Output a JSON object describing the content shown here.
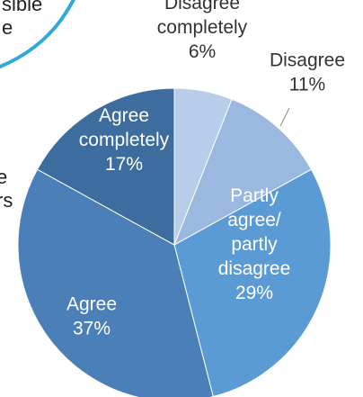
{
  "fragments": {
    "top_left_line1": "sible",
    "top_left_line2": "e",
    "mid_left_line1": "e",
    "mid_left_line2": "rs"
  },
  "chart_data": {
    "type": "pie",
    "title": "",
    "slices": [
      {
        "label_lines": [
          "Disagree",
          "completely",
          "6%"
        ],
        "value": 6,
        "color": "#b7cde9",
        "label_color": "#333333"
      },
      {
        "label_lines": [
          "Disagree",
          "11%"
        ],
        "value": 11,
        "color": "#9ab8e0",
        "label_color": "#333333"
      },
      {
        "label_lines": [
          "Partly",
          "agree/",
          "partly",
          "disagree",
          "29%"
        ],
        "value": 29,
        "color": "#5b9bd5",
        "label_color": "#ffffff"
      },
      {
        "label_lines": [
          "Agree",
          "37%"
        ],
        "value": 37,
        "color": "#4b7fb8",
        "label_color": "#ffffff"
      },
      {
        "label_lines": [
          "Agree",
          "completely",
          "17%"
        ],
        "value": 17,
        "color": "#3d6d9e",
        "label_color": "#ffffff"
      }
    ],
    "colors": {
      "callout_circle": "#2fa8dc",
      "leader_line": "#888888"
    }
  }
}
